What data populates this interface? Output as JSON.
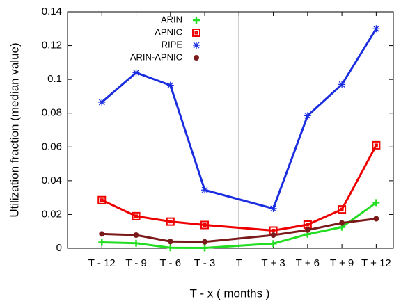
{
  "chart_data": {
    "type": "line",
    "x_label": "T - x ( months )",
    "y_label": "Utilization fraction (median value)",
    "x": [
      -12,
      -9,
      -6,
      -3,
      3,
      6,
      9,
      12
    ],
    "xlim": [
      -15,
      13.5
    ],
    "xticks": [
      {
        "value": -12,
        "label": "T - 12"
      },
      {
        "value": -9,
        "label": "T - 9"
      },
      {
        "value": -6,
        "label": "T - 6"
      },
      {
        "value": -3,
        "label": "T - 3"
      },
      {
        "value": 0,
        "label": "T"
      },
      {
        "value": 3,
        "label": "T + 3"
      },
      {
        "value": 6,
        "label": "T + 6"
      },
      {
        "value": 9,
        "label": "T + 9"
      },
      {
        "value": 12,
        "label": "T + 12"
      }
    ],
    "ylim": [
      0,
      0.14
    ],
    "yticks": [
      0,
      0.02,
      0.04,
      0.06,
      0.08,
      0.1,
      0.12,
      0.14
    ],
    "legend": "top-left",
    "series": [
      {
        "name": "ARIN",
        "color": "#22dd22",
        "marker": "plus",
        "values": [
          0.0035,
          0.003,
          0.0003,
          0.0002,
          0.0028,
          0.0083,
          0.0125,
          0.027
        ]
      },
      {
        "name": "APNIC",
        "color": "#ee0000",
        "marker": "square",
        "values": [
          0.0285,
          0.019,
          0.0158,
          0.0138,
          0.0105,
          0.014,
          0.023,
          0.061
        ]
      },
      {
        "name": "RIPE",
        "color": "#1a2ee0",
        "marker": "star",
        "values": [
          0.0865,
          0.104,
          0.0965,
          0.0345,
          0.0235,
          0.0785,
          0.097,
          0.13
        ]
      },
      {
        "name": "ARIN-APNIC",
        "color": "#7a1a1a",
        "marker": "circle",
        "values": [
          0.0085,
          0.0078,
          0.004,
          0.0038,
          0.0078,
          0.0108,
          0.015,
          0.0175
        ]
      }
    ]
  }
}
